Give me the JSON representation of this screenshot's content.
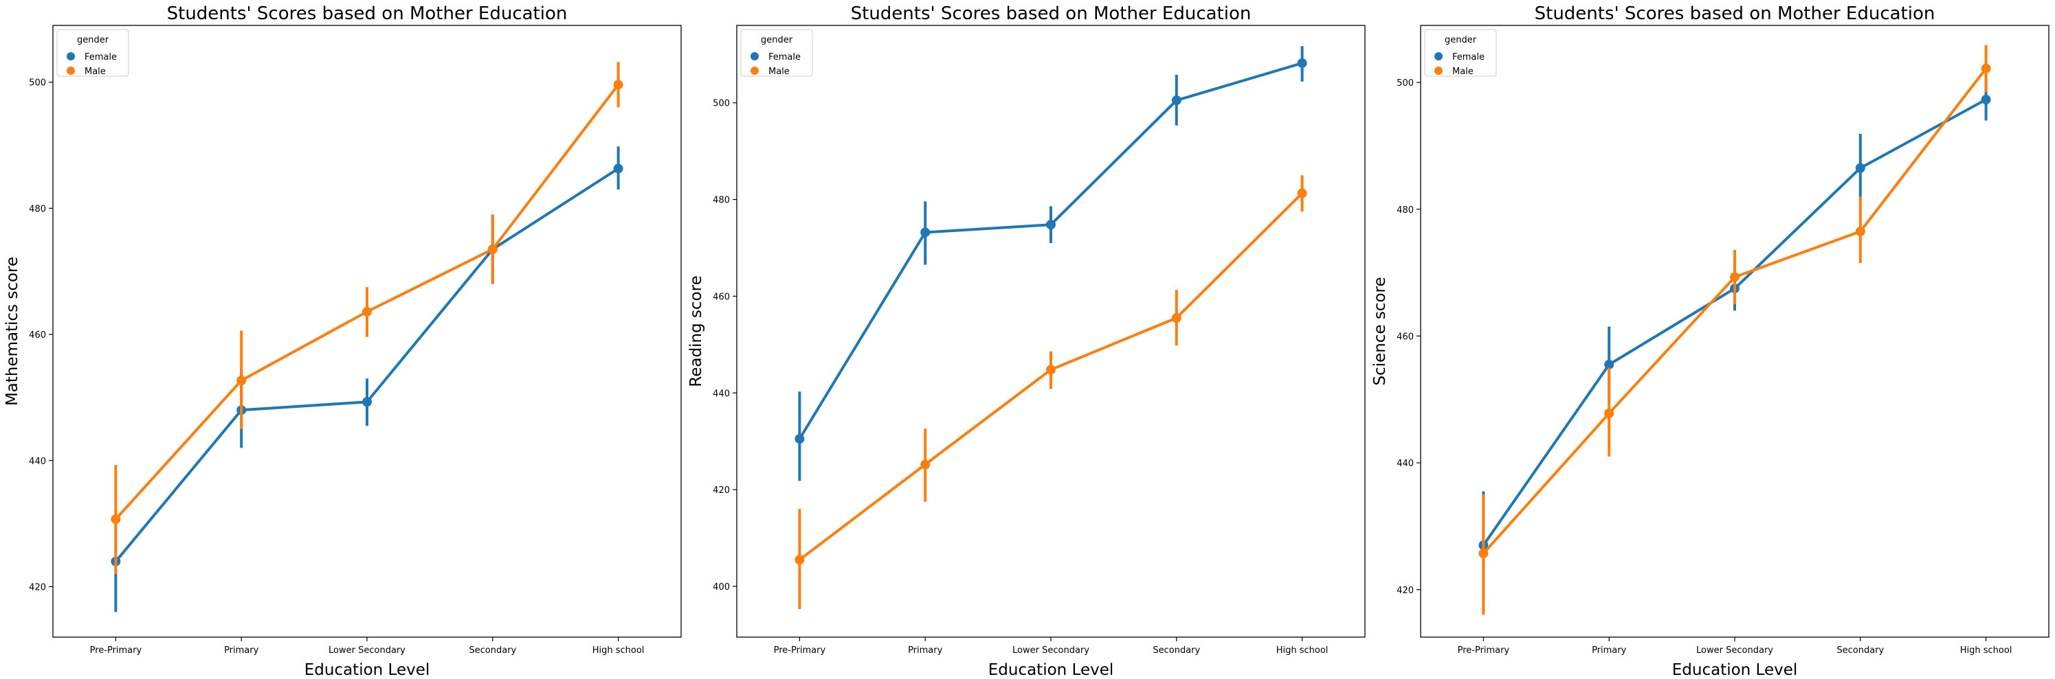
{
  "chart_data": [
    {
      "type": "line",
      "title": "Students' Scores based on Mother Education",
      "xlabel": "Education Level",
      "ylabel": "Mathematics score",
      "categories": [
        "Pre-Primary",
        "Primary",
        "Lower Secondary",
        "Secondary",
        "High school"
      ],
      "ylim": [
        412,
        509
      ],
      "yticks": [
        420,
        440,
        460,
        480,
        500
      ],
      "legend": {
        "title": "gender",
        "position": "top-left"
      },
      "series": [
        {
          "name": "Female",
          "color": "#1f77b4",
          "values": [
            424,
            448,
            449.3,
            473.5,
            486.3
          ],
          "ci": [
            [
              416,
              432
            ],
            [
              442,
              454.5
            ],
            [
              445.5,
              453
            ],
            [
              468,
              479
            ],
            [
              483,
              489.8
            ]
          ]
        },
        {
          "name": "Male",
          "color": "#ff7f0e",
          "values": [
            430.7,
            452.7,
            463.6,
            473.5,
            499.6
          ],
          "ci": [
            [
              422,
              439.3
            ],
            [
              445,
              460.6
            ],
            [
              459.6,
              467.5
            ],
            [
              468,
              479
            ],
            [
              496,
              503.2
            ]
          ]
        }
      ]
    },
    {
      "type": "line",
      "title": "Students' Scores based on Mother Education",
      "xlabel": "Education Level",
      "ylabel": "Reading score",
      "categories": [
        "Pre-Primary",
        "Primary",
        "Lower Secondary",
        "Secondary",
        "High school"
      ],
      "ylim": [
        389.5,
        516
      ],
      "yticks": [
        400,
        420,
        440,
        460,
        480,
        500
      ],
      "legend": {
        "title": "gender",
        "position": "top-left"
      },
      "series": [
        {
          "name": "Female",
          "color": "#1f77b4",
          "values": [
            430.5,
            473.2,
            474.8,
            500.5,
            508.2
          ],
          "ci": [
            [
              421.8,
              440.3
            ],
            [
              466.5,
              479.6
            ],
            [
              471,
              478.6
            ],
            [
              495.3,
              505.8
            ],
            [
              504.4,
              511.7
            ]
          ]
        },
        {
          "name": "Male",
          "color": "#ff7f0e",
          "values": [
            405.5,
            425.2,
            444.8,
            455.5,
            481.3
          ],
          "ci": [
            [
              395.3,
              416
            ],
            [
              417.5,
              432.6
            ],
            [
              440.8,
              448.6
            ],
            [
              449.8,
              461.3
            ],
            [
              477.5,
              485
            ]
          ]
        }
      ]
    },
    {
      "type": "line",
      "title": "Students' Scores based on Mother Education",
      "xlabel": "Education Level",
      "ylabel": "Science score",
      "categories": [
        "Pre-Primary",
        "Primary",
        "Lower Secondary",
        "Secondary",
        "High school"
      ],
      "ylim": [
        412.5,
        509
      ],
      "yticks": [
        420,
        440,
        460,
        480,
        500
      ],
      "legend": {
        "title": "gender",
        "position": "top-left"
      },
      "series": [
        {
          "name": "Female",
          "color": "#1f77b4",
          "values": [
            427,
            455.5,
            467.5,
            486.5,
            497.3
          ],
          "ci": [
            [
              418.5,
              435.5
            ],
            [
              449.5,
              461.5
            ],
            [
              464,
              471
            ],
            [
              481.5,
              491.9
            ],
            [
              494,
              500.3
            ]
          ]
        },
        {
          "name": "Male",
          "color": "#ff7f0e",
          "values": [
            425.7,
            447.8,
            469.3,
            476.5,
            502.2
          ],
          "ci": [
            [
              416,
              435
            ],
            [
              441,
              455
            ],
            [
              465,
              473.6
            ],
            [
              471.5,
              482
            ],
            [
              498.5,
              505.9
            ]
          ]
        }
      ]
    }
  ]
}
